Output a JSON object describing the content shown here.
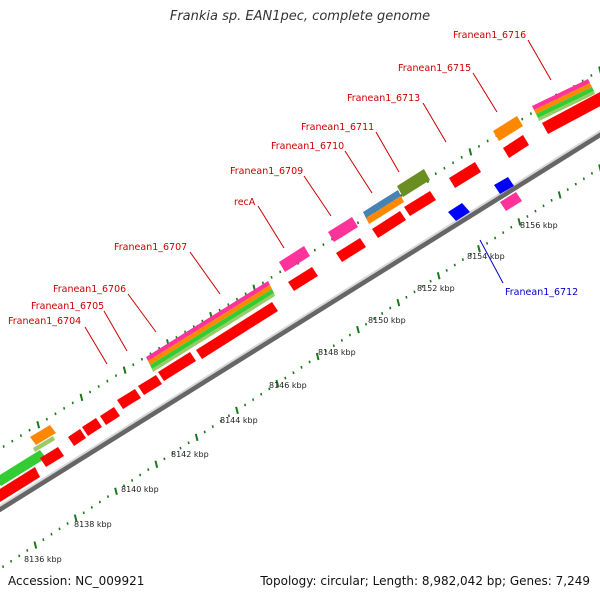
{
  "title": "Frankia sp. EAN1pec, complete genome",
  "footer": {
    "accession": "Accession: NC_009921",
    "summary": "Topology: circular; Length: 8,982,042 bp; Genes: 7,249"
  },
  "colors": {
    "forward_gene": "#ff0000",
    "reverse_gene": "#0000ff",
    "label_forward": "#cc0000",
    "label_reverse": "#0000cc",
    "tick": "#1a7a1a",
    "backbone": "#888888",
    "pink": "#ff3399",
    "orange": "#ff8800",
    "green": "#33cc33",
    "olive": "#6b8e23",
    "steelblue": "#4682b4",
    "lightgreen": "#99cc66"
  },
  "scale_labels": [
    "8136 kbp",
    "8138 kbp",
    "8140 kbp",
    "8142 kbp",
    "8144 kbp",
    "8146 kbp",
    "8148 kbp",
    "8150 kbp",
    "8152 kbp",
    "8154 kbp",
    "8156 kbp"
  ],
  "gene_labels": [
    {
      "text": "Franean1_6704",
      "strand": "forward"
    },
    {
      "text": "Franean1_6705",
      "strand": "forward"
    },
    {
      "text": "Franean1_6706",
      "strand": "forward"
    },
    {
      "text": "Franean1_6707",
      "strand": "forward"
    },
    {
      "text": "recA",
      "strand": "forward"
    },
    {
      "text": "Franean1_6709",
      "strand": "forward"
    },
    {
      "text": "Franean1_6710",
      "strand": "forward"
    },
    {
      "text": "Franean1_6711",
      "strand": "forward"
    },
    {
      "text": "Franean1_6713",
      "strand": "forward"
    },
    {
      "text": "Franean1_6715",
      "strand": "forward"
    },
    {
      "text": "Franean1_6716",
      "strand": "forward"
    },
    {
      "text": "Franean1_6712",
      "strand": "reverse"
    }
  ]
}
